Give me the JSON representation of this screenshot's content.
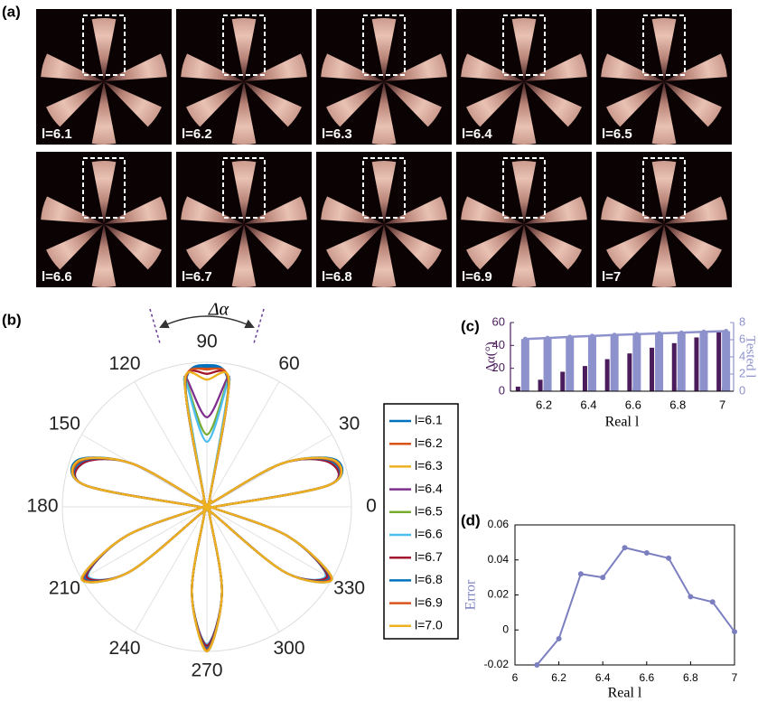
{
  "panel_a": {
    "label": "(a)",
    "images": [
      {
        "label": "l=6.1"
      },
      {
        "label": "l=6.2"
      },
      {
        "label": "l=6.3"
      },
      {
        "label": "l=6.4"
      },
      {
        "label": "l=6.5"
      },
      {
        "label": "l=6.6"
      },
      {
        "label": "l=6.7"
      },
      {
        "label": "l=6.8"
      },
      {
        "label": "l=6.9"
      },
      {
        "label": "l=7"
      }
    ]
  },
  "chart_data": [
    {
      "type": "polar",
      "label": "(b)",
      "annotation": "Δα",
      "legend": "right",
      "theta": [
        0,
        10,
        20,
        30,
        40,
        50,
        60,
        70,
        80,
        90,
        100,
        110,
        120,
        130,
        140,
        150,
        160,
        170,
        180,
        190,
        200,
        210,
        220,
        230,
        240,
        250,
        260,
        270,
        280,
        290,
        300,
        310,
        320,
        330,
        340,
        350
      ],
      "thetaticks": [
        0,
        30,
        60,
        90,
        120,
        150,
        180,
        210,
        240,
        270,
        300,
        330
      ],
      "rlim": [
        0,
        1
      ],
      "series": [
        {
          "name": "l=6.1",
          "color": "#0072BD",
          "values": [
            0.05,
            0.85,
            0.95,
            0.6,
            0.05,
            0.05,
            0.05,
            0.05,
            0.85,
            0.98,
            0.85,
            0.05,
            0.05,
            0.05,
            0.05,
            0.6,
            0.95,
            0.85,
            0.05,
            0.05,
            0.6,
            1.0,
            0.7,
            0.05,
            0.05,
            0.05,
            0.6,
            1.0,
            0.6,
            0.05,
            0.05,
            0.05,
            0.7,
            1.0,
            0.6,
            0.05
          ]
        },
        {
          "name": "l=6.2",
          "color": "#D95319",
          "values": [
            0.05,
            0.85,
            0.94,
            0.6,
            0.05,
            0.05,
            0.05,
            0.05,
            0.86,
            0.96,
            0.86,
            0.05,
            0.05,
            0.05,
            0.05,
            0.6,
            0.94,
            0.85,
            0.05,
            0.05,
            0.6,
            0.99,
            0.7,
            0.05,
            0.05,
            0.05,
            0.6,
            0.99,
            0.6,
            0.05,
            0.05,
            0.05,
            0.7,
            0.99,
            0.6,
            0.05
          ]
        },
        {
          "name": "l=6.3",
          "color": "#EDB120",
          "values": [
            0.05,
            0.85,
            0.93,
            0.6,
            0.05,
            0.05,
            0.05,
            0.05,
            0.87,
            0.92,
            0.87,
            0.05,
            0.05,
            0.05,
            0.05,
            0.6,
            0.93,
            0.85,
            0.05,
            0.05,
            0.6,
            0.98,
            0.7,
            0.05,
            0.05,
            0.05,
            0.6,
            0.98,
            0.6,
            0.05,
            0.05,
            0.05,
            0.7,
            0.98,
            0.6,
            0.05
          ]
        },
        {
          "name": "l=6.4",
          "color": "#7E2F8E",
          "values": [
            0.05,
            0.85,
            0.92,
            0.6,
            0.05,
            0.05,
            0.05,
            0.05,
            0.9,
            0.62,
            0.9,
            0.05,
            0.05,
            0.05,
            0.05,
            0.6,
            0.92,
            0.85,
            0.05,
            0.05,
            0.6,
            0.97,
            0.7,
            0.05,
            0.05,
            0.05,
            0.6,
            0.97,
            0.6,
            0.05,
            0.05,
            0.05,
            0.7,
            0.97,
            0.6,
            0.05
          ]
        },
        {
          "name": "l=6.5",
          "color": "#77AC30",
          "values": [
            0.05,
            0.85,
            0.91,
            0.6,
            0.05,
            0.05,
            0.05,
            0.05,
            0.9,
            0.5,
            0.9,
            0.05,
            0.05,
            0.05,
            0.05,
            0.6,
            0.91,
            0.85,
            0.05,
            0.05,
            0.6,
            0.96,
            0.7,
            0.05,
            0.05,
            0.05,
            0.6,
            0.96,
            0.6,
            0.05,
            0.05,
            0.05,
            0.7,
            0.96,
            0.6,
            0.05
          ]
        },
        {
          "name": "l=6.6",
          "color": "#4DBEEE",
          "values": [
            0.05,
            0.85,
            0.9,
            0.6,
            0.05,
            0.05,
            0.05,
            0.05,
            0.9,
            0.45,
            0.9,
            0.05,
            0.05,
            0.05,
            0.05,
            0.6,
            0.9,
            0.85,
            0.05,
            0.05,
            0.6,
            0.95,
            0.7,
            0.05,
            0.05,
            0.05,
            0.6,
            0.95,
            0.6,
            0.05,
            0.05,
            0.05,
            0.7,
            0.95,
            0.6,
            0.05
          ]
        },
        {
          "name": "l=6.7",
          "color": "#A2142F",
          "values": [
            0.05,
            0.85,
            0.9,
            0.6,
            0.05,
            0.05,
            0.05,
            0.05,
            0.87,
            0.92,
            0.87,
            0.05,
            0.05,
            0.05,
            0.05,
            0.6,
            0.9,
            0.85,
            0.05,
            0.05,
            0.6,
            0.96,
            0.7,
            0.05,
            0.05,
            0.05,
            0.6,
            0.96,
            0.6,
            0.05,
            0.05,
            0.05,
            0.7,
            0.96,
            0.6,
            0.05
          ]
        },
        {
          "name": "l=6.8",
          "color": "#0072BD",
          "values": [
            0.05,
            0.85,
            0.92,
            0.6,
            0.05,
            0.05,
            0.05,
            0.05,
            0.85,
            0.97,
            0.85,
            0.05,
            0.05,
            0.05,
            0.05,
            0.6,
            0.92,
            0.85,
            0.05,
            0.05,
            0.6,
            0.98,
            0.7,
            0.05,
            0.05,
            0.05,
            0.6,
            0.98,
            0.6,
            0.05,
            0.05,
            0.05,
            0.7,
            0.98,
            0.6,
            0.05
          ]
        },
        {
          "name": "l=6.9",
          "color": "#D95319",
          "values": [
            0.05,
            0.85,
            0.93,
            0.6,
            0.05,
            0.05,
            0.05,
            0.05,
            0.86,
            0.95,
            0.86,
            0.05,
            0.05,
            0.05,
            0.05,
            0.6,
            0.93,
            0.85,
            0.05,
            0.05,
            0.6,
            0.99,
            0.7,
            0.05,
            0.05,
            0.05,
            0.6,
            0.99,
            0.6,
            0.05,
            0.05,
            0.05,
            0.7,
            0.99,
            0.6,
            0.05
          ]
        },
        {
          "name": "l=7.0",
          "color": "#EDB120",
          "values": [
            0.05,
            0.85,
            0.94,
            0.6,
            0.05,
            0.05,
            0.05,
            0.05,
            0.88,
            0.88,
            0.88,
            0.05,
            0.05,
            0.05,
            0.05,
            0.6,
            0.94,
            0.85,
            0.05,
            0.05,
            0.6,
            1.0,
            0.7,
            0.05,
            0.05,
            0.05,
            0.6,
            1.0,
            0.6,
            0.05,
            0.05,
            0.05,
            0.7,
            1.0,
            0.6,
            0.05
          ]
        }
      ]
    },
    {
      "type": "bar",
      "label": "(c)",
      "xlabel": "Real l",
      "ylabel": "Δα(°)",
      "y2label": "Tested l",
      "x": [
        6.1,
        6.2,
        6.3,
        6.4,
        6.5,
        6.6,
        6.7,
        6.8,
        6.9,
        7.0
      ],
      "xlim": [
        6.05,
        7.05
      ],
      "xticks": [
        6.2,
        6.4,
        6.6,
        6.8,
        7
      ],
      "ylim": [
        0,
        60
      ],
      "yticks": [
        0,
        20,
        40,
        60
      ],
      "y2lim": [
        0,
        8
      ],
      "y2ticks": [
        0,
        2,
        4,
        6,
        8
      ],
      "series": [
        {
          "color": "#4a1c5c",
          "values": [
            4,
            10,
            17,
            22,
            28,
            33,
            38,
            42,
            47,
            51.5
          ]
        },
        {
          "color": "#8e92cc",
          "axis": "y2",
          "line": true,
          "values": [
            6.08,
            6.195,
            6.332,
            6.43,
            6.547,
            6.644,
            6.741,
            6.819,
            6.916,
            6.999
          ]
        }
      ]
    },
    {
      "type": "line",
      "label": "(d)",
      "xlabel": "Real l",
      "ylabel": "Error",
      "color": "#7b7fc0",
      "x": [
        6.1,
        6.2,
        6.3,
        6.4,
        6.5,
        6.6,
        6.7,
        6.8,
        6.9,
        7.0
      ],
      "values": [
        -0.02,
        -0.005,
        0.032,
        0.03,
        0.047,
        0.044,
        0.041,
        0.019,
        0.016,
        -0.001
      ],
      "xlim": [
        6,
        7
      ],
      "xticks": [
        6,
        6.2,
        6.4,
        6.6,
        6.8,
        7
      ],
      "ylim": [
        -0.02,
        0.06
      ],
      "yticks": [
        -0.02,
        0,
        0.02,
        0.04,
        0.06
      ]
    }
  ]
}
